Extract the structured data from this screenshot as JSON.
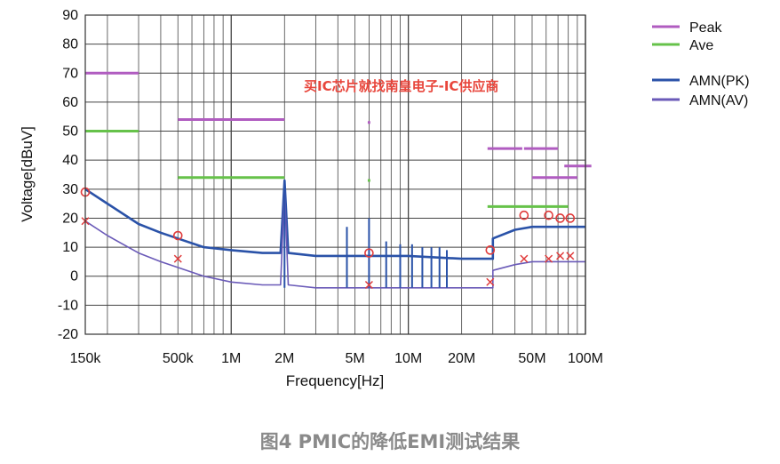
{
  "caption": "图4 PMIC的降低EMI测试结果",
  "watermark": "买IC芯片就找南皇电子-IC供应商",
  "colors": {
    "peak_limit": "#b05cc0",
    "avg_limit": "#66c24a",
    "amn_pk": "#2a52a8",
    "amn_av": "#6a5ab8",
    "markers": "#e03b3b",
    "grid": "#444444"
  },
  "chart_data": {
    "type": "line",
    "xlabel": "Frequency[Hz]",
    "ylabel": "Voltage[dBuV]",
    "xscale": "log",
    "xlim": [
      150000,
      100000000
    ],
    "ylim": [
      -20,
      90
    ],
    "x_ticks": [
      {
        "value": 150000,
        "label": "150k"
      },
      {
        "value": 500000,
        "label": "500k"
      },
      {
        "value": 1000000,
        "label": "1M"
      },
      {
        "value": 2000000,
        "label": "2M"
      },
      {
        "value": 5000000,
        "label": "5M"
      },
      {
        "value": 10000000,
        "label": "10M"
      },
      {
        "value": 20000000,
        "label": "20M"
      },
      {
        "value": 50000000,
        "label": "50M"
      },
      {
        "value": 100000000,
        "label": "100M"
      }
    ],
    "y_ticks": [
      90,
      80,
      70,
      60,
      50,
      40,
      30,
      20,
      10,
      0,
      -10,
      -20
    ],
    "legend_position": "right",
    "legend": [
      {
        "label": "Peak",
        "color_key": "peak_limit"
      },
      {
        "label": "Ave",
        "color_key": "avg_limit"
      },
      {
        "label": "AMN(PK)",
        "color_key": "amn_pk"
      },
      {
        "label": "AMN(AV)",
        "color_key": "amn_av"
      }
    ],
    "limit_lines": {
      "peak": [
        {
          "x": [
            150000,
            300000
          ],
          "y": 70
        },
        {
          "x": [
            500000,
            2000000
          ],
          "y": 54
        },
        {
          "x": [
            5900000,
            6100000
          ],
          "y": 53
        },
        {
          "x": [
            28000000,
            44000000
          ],
          "y": 44
        },
        {
          "x": [
            45000000,
            70000000
          ],
          "y": 44
        },
        {
          "x": [
            50000000,
            90000000
          ],
          "y": 34
        },
        {
          "x": [
            76000000,
            108000000
          ],
          "y": 38
        }
      ],
      "average": [
        {
          "x": [
            150000,
            300000
          ],
          "y": 50
        },
        {
          "x": [
            500000,
            2000000
          ],
          "y": 34
        },
        {
          "x": [
            5900000,
            6100000
          ],
          "y": 33
        },
        {
          "x": [
            28000000,
            80000000
          ],
          "y": 24
        }
      ]
    },
    "series": [
      {
        "name": "AMN(PK)",
        "color_key": "amn_pk",
        "x": [
          150000,
          200000,
          300000,
          400000,
          500000,
          700000,
          1000000,
          1500000,
          1900000,
          2000000,
          2100000,
          3000000,
          5000000,
          10000000,
          20000000,
          30000000,
          30000000,
          40000000,
          50000000,
          70000000,
          100000000
        ],
        "y": [
          30,
          25,
          18,
          15,
          13,
          10,
          9,
          8,
          8,
          33,
          8,
          7,
          7,
          7,
          6,
          6,
          13,
          16,
          17,
          17,
          17
        ]
      },
      {
        "name": "AMN(AV)",
        "color_key": "amn_av",
        "x": [
          150000,
          200000,
          300000,
          400000,
          500000,
          700000,
          1000000,
          1500000,
          1900000,
          2000000,
          2100000,
          3000000,
          5000000,
          10000000,
          20000000,
          30000000,
          30000000,
          40000000,
          50000000,
          70000000,
          100000000
        ],
        "y": [
          19,
          14,
          8,
          5,
          3,
          0,
          -2,
          -3,
          -3,
          30,
          -3,
          -4,
          -4,
          -4,
          -4,
          -4,
          2,
          4,
          5,
          5,
          5
        ]
      }
    ],
    "spurs_pk": [
      {
        "x": 2000000,
        "y": 33
      },
      {
        "x": 4500000,
        "y": 17
      },
      {
        "x": 6000000,
        "y": 20
      },
      {
        "x": 7500000,
        "y": 12
      },
      {
        "x": 9000000,
        "y": 11
      },
      {
        "x": 10500000,
        "y": 11
      },
      {
        "x": 12000000,
        "y": 10
      },
      {
        "x": 13500000,
        "y": 10
      },
      {
        "x": 15000000,
        "y": 10
      },
      {
        "x": 16500000,
        "y": 9
      }
    ],
    "markers_peak_o": [
      {
        "x": 150000,
        "y": 29
      },
      {
        "x": 500000,
        "y": 14
      },
      {
        "x": 6000000,
        "y": 8
      },
      {
        "x": 29000000,
        "y": 9
      },
      {
        "x": 45000000,
        "y": 21
      },
      {
        "x": 62000000,
        "y": 21
      },
      {
        "x": 72000000,
        "y": 20
      },
      {
        "x": 82000000,
        "y": 20
      }
    ],
    "markers_avg_x": [
      {
        "x": 150000,
        "y": 19
      },
      {
        "x": 500000,
        "y": 6
      },
      {
        "x": 6000000,
        "y": -3
      },
      {
        "x": 29000000,
        "y": -2
      },
      {
        "x": 45000000,
        "y": 6
      },
      {
        "x": 62000000,
        "y": 6
      },
      {
        "x": 72000000,
        "y": 7
      },
      {
        "x": 82000000,
        "y": 7
      }
    ]
  }
}
